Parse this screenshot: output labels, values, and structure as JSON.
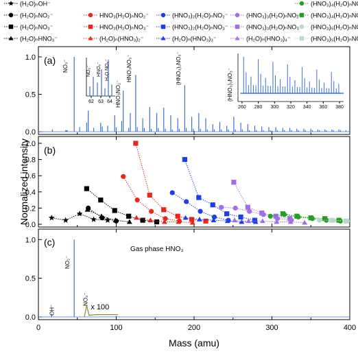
{
  "legend": {
    "items": [
      {
        "label": "(H₂O)ₙOH⁻",
        "color": "#000000",
        "marker": "star"
      },
      {
        "label": "(H₂O)ₙNO₂⁻",
        "color": "#000000",
        "marker": "circle"
      },
      {
        "label": "(H₂O)ₙNO₃⁻",
        "color": "#000000",
        "marker": "square"
      },
      {
        "label": "(H₂O)ₙHNO₃⁻",
        "color": "#000000",
        "marker": "triangle"
      },
      {
        "label": "HNO₃(H₂O)ₙNO₂⁻",
        "color": "#e8281e",
        "marker": "circle"
      },
      {
        "label": "HNO₃(H₂O)ₙNO₃⁻",
        "color": "#e8281e",
        "marker": "square"
      },
      {
        "label": "(H₂O)ₙ(HNO₃)₂⁻",
        "color": "#e8281e",
        "marker": "triangle"
      },
      {
        "label": "(HNO₃)₂(H₂O)ₙNO₂⁻",
        "color": "#1f3fe0",
        "marker": "circle"
      },
      {
        "label": "(HNO₃)₂(H₂O)ₙNO₃⁻",
        "color": "#1f3fe0",
        "marker": "square"
      },
      {
        "label": "(H₂O)ₙ(HNO₃)₃⁻",
        "color": "#1f3fe0",
        "marker": "triangle"
      },
      {
        "label": "(HNO₃)₃(H₂O)ₙNO₂⁻",
        "color": "#a070e0",
        "marker": "circle"
      },
      {
        "label": "(HNO₃)₃(H₂O)ₙNO₃⁻",
        "color": "#a070e0",
        "marker": "square"
      },
      {
        "label": "(H₂O)ₙ(HNO₃)₄⁻",
        "color": "#a070e0",
        "marker": "triangle"
      },
      {
        "label": "(HNO₃)₄(H₂O)ₙNO₂⁻",
        "color": "#2a9a2a",
        "marker": "circle"
      },
      {
        "label": "(HNO₃)₄(H₂O)ₙNO₃⁻",
        "color": "#2a9a2a",
        "marker": "square"
      },
      {
        "label": "(HNO₃)₅(H₂O)ₙNO₂⁻",
        "color": "#b8d8c8",
        "marker": "circle"
      },
      {
        "label": "(HNO₃)₅(H₂O)ₙNO₃⁻",
        "color": "#b8d8c8",
        "marker": "square"
      }
    ]
  },
  "chart_data": [
    {
      "type": "line",
      "panel_label": "(a)",
      "xlim": [
        0,
        400
      ],
      "ylim": [
        0,
        1.1
      ],
      "ytick_labels": [
        "0.0",
        "0.5",
        "1.0"
      ],
      "line_color": "#3c6fd8",
      "peaks": {
        "x": [
          18,
          35,
          36,
          37,
          46,
          53,
          62,
          64,
          71,
          80,
          82,
          89,
          98,
          100,
          107,
          109,
          116,
          118,
          125,
          127,
          134,
          136,
          143,
          145,
          152,
          154,
          161,
          163,
          170,
          172,
          179,
          181,
          188,
          190,
          197,
          199,
          206,
          208,
          215,
          217,
          224,
          226,
          233,
          235,
          242,
          244,
          251,
          253,
          260,
          262,
          269,
          271,
          278,
          280,
          287,
          289,
          296,
          298,
          305,
          307,
          314,
          316,
          323,
          325,
          332,
          334,
          341,
          343,
          350,
          352,
          359,
          361,
          368,
          370,
          377,
          379,
          386,
          388,
          395
        ],
        "y": [
          0.03,
          0.02,
          0.02,
          0.02,
          1.0,
          0.06,
          0.12,
          0.28,
          0.05,
          0.12,
          0.07,
          0.08,
          0.22,
          0.06,
          0.14,
          0.55,
          0.05,
          0.25,
          0.76,
          0.06,
          0.18,
          0.05,
          0.33,
          0.04,
          0.25,
          0.05,
          0.32,
          0.04,
          0.22,
          0.03,
          0.18,
          0.04,
          0.62,
          0.05,
          0.2,
          0.04,
          0.25,
          0.04,
          0.18,
          0.03,
          0.1,
          0.03,
          0.13,
          0.03,
          0.08,
          0.03,
          0.2,
          0.03,
          0.12,
          0.03,
          0.1,
          0.02,
          0.08,
          0.02,
          0.07,
          0.02,
          0.06,
          0.02,
          0.06,
          0.02,
          0.05,
          0.02,
          0.05,
          0.02,
          0.04,
          0.02,
          0.04,
          0.02,
          0.04,
          0.02,
          0.03,
          0.02,
          0.03,
          0.02,
          0.03,
          0.02,
          0.03,
          0.02,
          0.02
        ]
      },
      "annotations": [
        "NO₃⁻",
        "HNO₃NO₃⁻",
        "HNO₃NO₂⁻",
        "(HNO₃)₂NO₃⁻",
        "(HNO₃)₃NO₃⁻"
      ],
      "inset_left": {
        "xticks": [
          "62",
          "63",
          "64"
        ],
        "labels": [
          "NO₂⁻",
          "HNO₂⁻",
          "H₂O NO₂⁻"
        ]
      },
      "inset_right": {
        "xticks": [
          "260",
          "280",
          "300",
          "320",
          "340",
          "360",
          "380"
        ]
      }
    },
    {
      "type": "scatter",
      "panel_label": "(b)",
      "xlim": [
        0,
        400
      ],
      "ylim": [
        0,
        1.05
      ],
      "ytick_labels": [
        "0.0",
        "0.2",
        "0.4",
        "0.6",
        "0.8",
        "1.0"
      ],
      "series": [
        {
          "legend_index": 0,
          "color": "#000000",
          "marker": "star",
          "x": [
            17,
            35,
            53,
            71,
            89
          ],
          "y": [
            0.08,
            0.05,
            0.13,
            0.06,
            0.05
          ]
        },
        {
          "legend_index": 1,
          "color": "#000000",
          "marker": "circle",
          "x": [
            64,
            82,
            100
          ],
          "y": [
            0.2,
            0.08,
            0.04
          ]
        },
        {
          "legend_index": 2,
          "color": "#000000",
          "marker": "square",
          "x": [
            62,
            80,
            98,
            116,
            134,
            152
          ],
          "y": [
            0.44,
            0.3,
            0.17,
            0.1,
            0.05,
            0.03
          ]
        },
        {
          "legend_index": 3,
          "color": "#000000",
          "marker": "triangle",
          "x": [
            63,
            81,
            99,
            117
          ],
          "y": [
            0.18,
            0.1,
            0.05,
            0.03
          ]
        },
        {
          "legend_index": 4,
          "color": "#e8281e",
          "marker": "circle",
          "x": [
            109,
            127,
            145,
            163,
            181
          ],
          "y": [
            0.59,
            0.3,
            0.16,
            0.07,
            0.04
          ]
        },
        {
          "legend_index": 5,
          "color": "#e8281e",
          "marker": "square",
          "x": [
            125,
            143,
            161,
            179,
            197,
            215
          ],
          "y": [
            1.0,
            0.36,
            0.18,
            0.1,
            0.06,
            0.04
          ]
        },
        {
          "legend_index": 6,
          "color": "#e8281e",
          "marker": "triangle",
          "x": [
            126,
            144,
            162,
            180,
            198
          ],
          "y": [
            0.08,
            0.05,
            0.03,
            0.03,
            0.02
          ]
        },
        {
          "legend_index": 7,
          "color": "#1f3fe0",
          "marker": "circle",
          "x": [
            172,
            190,
            208,
            226,
            244
          ],
          "y": [
            0.39,
            0.28,
            0.16,
            0.09,
            0.05
          ]
        },
        {
          "legend_index": 8,
          "color": "#1f3fe0",
          "marker": "square",
          "x": [
            188,
            206,
            224,
            242,
            260,
            278
          ],
          "y": [
            0.8,
            0.33,
            0.24,
            0.13,
            0.09,
            0.05
          ]
        },
        {
          "legend_index": 9,
          "color": "#1f3fe0",
          "marker": "triangle",
          "x": [
            189,
            207,
            225,
            243,
            261,
            279
          ],
          "y": [
            0.08,
            0.06,
            0.05,
            0.04,
            0.03,
            0.03
          ]
        },
        {
          "legend_index": 10,
          "color": "#a070e0",
          "marker": "circle",
          "x": [
            235,
            253,
            271,
            289,
            307,
            325
          ],
          "y": [
            0.21,
            0.2,
            0.16,
            0.12,
            0.07,
            0.05
          ]
        },
        {
          "legend_index": 11,
          "color": "#a070e0",
          "marker": "square",
          "x": [
            251,
            269,
            287,
            305,
            323
          ],
          "y": [
            0.52,
            0.21,
            0.14,
            0.1,
            0.07
          ]
        },
        {
          "legend_index": 12,
          "color": "#a070e0",
          "marker": "triangle",
          "x": [
            252,
            270,
            288,
            306,
            324,
            342
          ],
          "y": [
            0.05,
            0.04,
            0.04,
            0.03,
            0.03,
            0.02
          ]
        },
        {
          "legend_index": 13,
          "color": "#2a9a2a",
          "marker": "circle",
          "x": [
            298,
            316,
            334,
            352,
            370,
            388
          ],
          "y": [
            0.1,
            0.12,
            0.09,
            0.07,
            0.05,
            0.04
          ]
        },
        {
          "legend_index": 14,
          "color": "#2a9a2a",
          "marker": "square",
          "x": [
            314,
            332,
            350,
            368,
            386
          ],
          "y": [
            0.13,
            0.1,
            0.08,
            0.07,
            0.05
          ]
        },
        {
          "legend_index": 15,
          "color": "#b8d8c8",
          "marker": "circle",
          "x": [
            361,
            379,
            397
          ],
          "y": [
            0.05,
            0.05,
            0.04
          ]
        },
        {
          "legend_index": 16,
          "color": "#b8d8c8",
          "marker": "square",
          "x": [
            377,
            395
          ],
          "y": [
            0.05,
            0.04
          ]
        }
      ]
    },
    {
      "type": "line",
      "panel_label": "(c)",
      "xlim": [
        0,
        400
      ],
      "ylim": [
        0,
        1.1
      ],
      "ytick_labels": [
        "0.0",
        "0.5",
        "1.0"
      ],
      "line_color": "#3c6fd8",
      "inset_color": "#8a8a3a",
      "peaks": {
        "x": [
          17,
          46
        ],
        "y": [
          0.04,
          1.0
        ]
      },
      "scaled_peak": {
        "x": 62,
        "y": 0.15,
        "factor": "x 100"
      },
      "annotations": [
        "OH⁻",
        "NO₂⁻",
        "NO₃⁻"
      ],
      "title_text": "Gas phase HNO₃"
    }
  ],
  "axes": {
    "ylabel": "Normalized intensity",
    "xlabel": "Mass (amu)",
    "xtick_labels": [
      "0",
      "100",
      "200",
      "300",
      "400"
    ]
  }
}
